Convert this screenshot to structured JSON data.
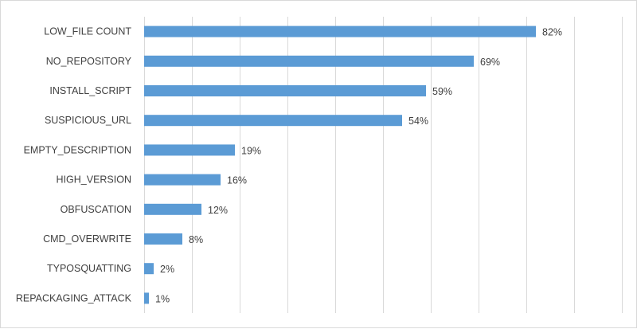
{
  "chart_data": {
    "type": "bar",
    "orientation": "horizontal",
    "title": "",
    "xlabel": "",
    "ylabel": "",
    "categories": [
      "LOW_FILE COUNT",
      "NO_REPOSITORY",
      "INSTALL_SCRIPT",
      "SUSPICIOUS_URL",
      "EMPTY_DESCRIPTION",
      "HIGH_VERSION",
      "OBFUSCATION",
      "CMD_OVERWRITE",
      "TYPOSQUATTING",
      "REPACKAGING_ATTACK"
    ],
    "values": [
      82,
      69,
      59,
      54,
      19,
      16,
      12,
      8,
      2,
      1
    ],
    "value_labels": [
      "82%",
      "69%",
      "59%",
      "54%",
      "19%",
      "16%",
      "12%",
      "8%",
      "2%",
      "1%"
    ],
    "xlim": [
      0,
      100
    ],
    "grid": "vertical",
    "legend": "none",
    "bar_color": "#5b9bd5",
    "grid_color": "#d9d9d9",
    "text_color": "#404040"
  }
}
